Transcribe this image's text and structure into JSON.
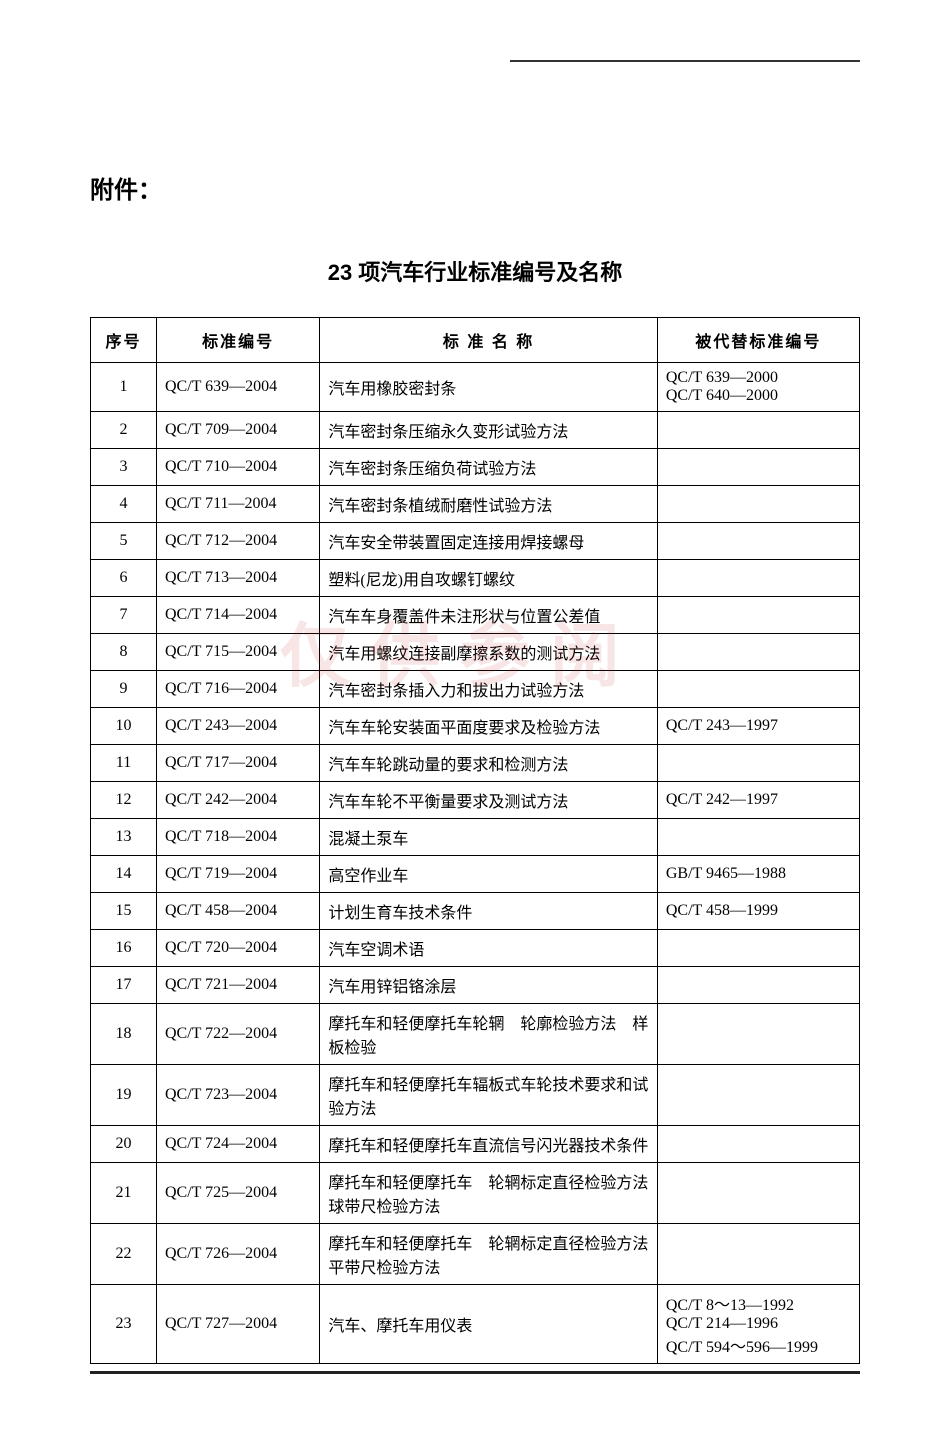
{
  "attachment_label": "附件：",
  "title": "23 项汽车行业标准编号及名称",
  "watermark_text": "仅供参阅",
  "table": {
    "columns": [
      "序号",
      "标准编号",
      "标 准 名 称",
      "被代替标准编号"
    ],
    "rows": [
      {
        "seq": "1",
        "code": "QC/T 639—2004",
        "name": "汽车用橡胶密封条",
        "replaced": "QC/T 639—2000\nQC/T 640—2000"
      },
      {
        "seq": "2",
        "code": "QC/T 709—2004",
        "name": "汽车密封条压缩永久变形试验方法",
        "replaced": ""
      },
      {
        "seq": "3",
        "code": "QC/T 710—2004",
        "name": "汽车密封条压缩负荷试验方法",
        "replaced": ""
      },
      {
        "seq": "4",
        "code": "QC/T 711—2004",
        "name": "汽车密封条植绒耐磨性试验方法",
        "replaced": ""
      },
      {
        "seq": "5",
        "code": "QC/T 712—2004",
        "name": "汽车安全带装置固定连接用焊接螺母",
        "replaced": ""
      },
      {
        "seq": "6",
        "code": "QC/T 713—2004",
        "name": "塑料(尼龙)用自攻螺钉螺纹",
        "replaced": ""
      },
      {
        "seq": "7",
        "code": "QC/T 714—2004",
        "name": "汽车车身覆盖件未注形状与位置公差值",
        "replaced": ""
      },
      {
        "seq": "8",
        "code": "QC/T 715—2004",
        "name": "汽车用螺纹连接副摩擦系数的测试方法",
        "replaced": ""
      },
      {
        "seq": "9",
        "code": "QC/T 716—2004",
        "name": "汽车密封条插入力和拔出力试验方法",
        "replaced": ""
      },
      {
        "seq": "10",
        "code": "QC/T 243—2004",
        "name": "汽车车轮安装面平面度要求及检验方法",
        "replaced": "QC/T 243—1997"
      },
      {
        "seq": "11",
        "code": "QC/T 717—2004",
        "name": "汽车车轮跳动量的要求和检测方法",
        "replaced": ""
      },
      {
        "seq": "12",
        "code": "QC/T 242—2004",
        "name": "汽车车轮不平衡量要求及测试方法",
        "replaced": "QC/T 242—1997"
      },
      {
        "seq": "13",
        "code": "QC/T 718—2004",
        "name": "混凝土泵车",
        "replaced": ""
      },
      {
        "seq": "14",
        "code": "QC/T 719—2004",
        "name": "高空作业车",
        "replaced": "GB/T 9465—1988"
      },
      {
        "seq": "15",
        "code": "QC/T 458—2004",
        "name": "计划生育车技术条件",
        "replaced": "QC/T 458—1999"
      },
      {
        "seq": "16",
        "code": "QC/T 720—2004",
        "name": "汽车空调术语",
        "replaced": ""
      },
      {
        "seq": "17",
        "code": "QC/T 721—2004",
        "name": "汽车用锌铝铬涂层",
        "replaced": ""
      },
      {
        "seq": "18",
        "code": "QC/T 722—2004",
        "name": "摩托车和轻便摩托车轮辋　轮廓检验方法　样板检验",
        "replaced": ""
      },
      {
        "seq": "19",
        "code": "QC/T 723—2004",
        "name": "摩托车和轻便摩托车辐板式车轮技术要求和试验方法",
        "replaced": ""
      },
      {
        "seq": "20",
        "code": "QC/T 724—2004",
        "name": "摩托车和轻便摩托车直流信号闪光器技术条件",
        "replaced": ""
      },
      {
        "seq": "21",
        "code": "QC/T 725—2004",
        "name": "摩托车和轻便摩托车　轮辋标定直径检验方法　球带尺检验方法",
        "replaced": ""
      },
      {
        "seq": "22",
        "code": "QC/T 726—2004",
        "name": "摩托车和轻便摩托车　轮辋标定直径检验方法　平带尺检验方法",
        "replaced": ""
      },
      {
        "seq": "23",
        "code": "QC/T 727—2004",
        "name": "汽车、摩托车用仪表",
        "replaced": "QC/T 8～13—1992\nQC/T 214—1996\nQC/T 594～596—1999"
      }
    ]
  }
}
